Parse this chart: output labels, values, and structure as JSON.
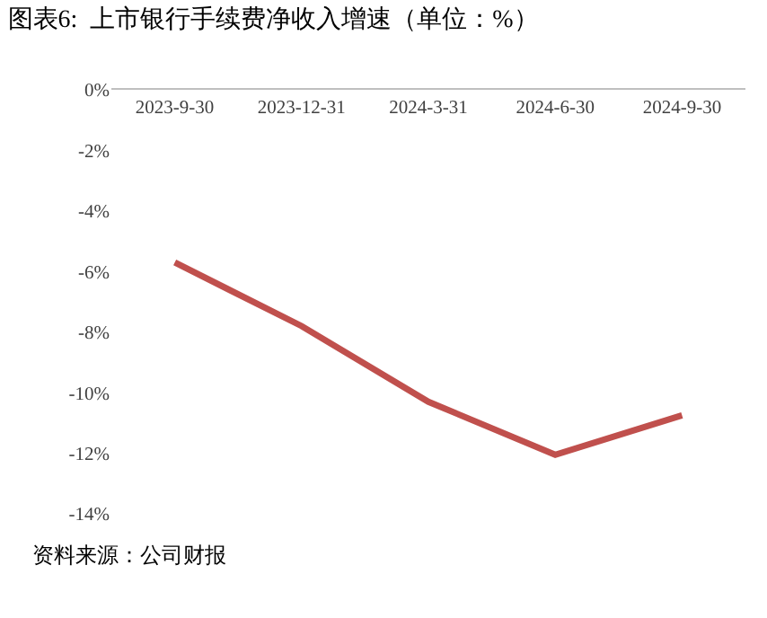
{
  "chart_data": {
    "type": "line",
    "title": "图表6:  上市银行手续费净收入增速（单位：%）",
    "categories": [
      "2023-9-30",
      "2023-12-31",
      "2024-3-31",
      "2024-6-30",
      "2024-9-30"
    ],
    "series": [
      {
        "color": "#c0504d",
        "values": [
          -5.7,
          -7.8,
          -10.3,
          -12.05,
          -10.75
        ]
      }
    ],
    "ylim": [
      -14,
      0
    ],
    "yticks": [
      {
        "value": 0,
        "label": "0%"
      },
      {
        "value": -2,
        "label": "-2%"
      },
      {
        "value": -4,
        "label": "-4%"
      },
      {
        "value": -6,
        "label": "-6%"
      },
      {
        "value": -8,
        "label": "-8%"
      },
      {
        "value": -10,
        "label": "-10%"
      },
      {
        "value": -12,
        "label": "-12%"
      },
      {
        "value": -14,
        "label": "-14%"
      }
    ],
    "grid": false,
    "marker": "none",
    "line_style": "solid",
    "annotations": [
      "资料来源：公司财报"
    ]
  }
}
